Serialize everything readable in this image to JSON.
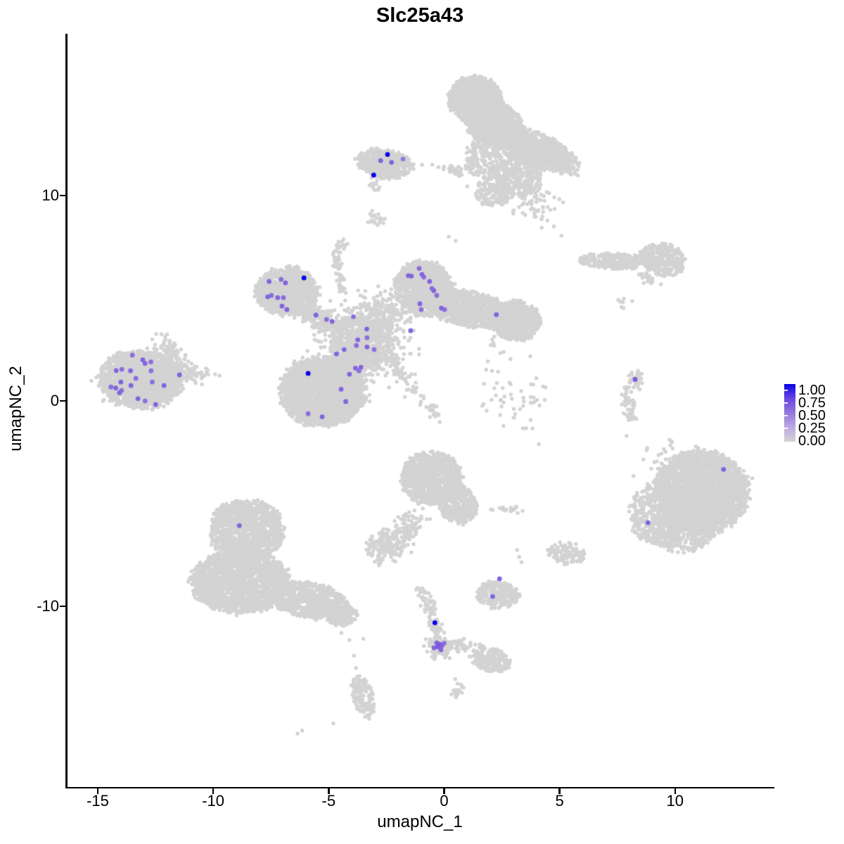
{
  "title": "Slc25a43",
  "axes": {
    "x": {
      "label": "umapNC_1",
      "ticks": [
        -15,
        -10,
        -5,
        0,
        5,
        10
      ]
    },
    "y": {
      "label": "umapNC_2",
      "ticks": [
        10,
        0,
        -10
      ]
    }
  },
  "legend": {
    "labels": [
      "1.00",
      "0.75",
      "0.50",
      "0.25",
      "0.00"
    ],
    "values": [
      1,
      0.75,
      0.5,
      0.25,
      0
    ]
  },
  "colors": {
    "background": "#FFFFFF",
    "axis": "#000000",
    "point_base": "#D3D3D3",
    "gradient": [
      [
        0,
        "#D3D3D3"
      ],
      [
        0.25,
        "#BCAAE3"
      ],
      [
        0.5,
        "#9478DC"
      ],
      [
        0.75,
        "#6A45DF"
      ],
      [
        1,
        "#0902E8"
      ]
    ]
  },
  "chart_data": {
    "type": "scatter",
    "title": "Slc25a43",
    "xlabel": "umapNC_1",
    "ylabel": "umapNC_2",
    "xlim": [
      -16.37,
      14.27
    ],
    "ylim": [
      -18.8,
      17.88
    ],
    "point_radius_px": {
      "base": 2.75,
      "expressed": 3.4
    },
    "clusters": [
      {
        "name": "top-main-upper",
        "t": "u",
        "x": 1.35,
        "y": 14.7,
        "sx": 1.15,
        "sy": 1.1,
        "rot": -10,
        "n": 900
      },
      {
        "name": "top-main-lower",
        "t": "u",
        "x": 2.15,
        "y": 13.5,
        "sx": 1.2,
        "sy": 1.05,
        "rot": -20,
        "n": 900
      },
      {
        "name": "top-arm",
        "t": "u",
        "x": 4.0,
        "y": 12.25,
        "sx": 1.75,
        "sy": 0.8,
        "rot": -27,
        "n": 850
      },
      {
        "name": "top-arm-tip",
        "t": "g",
        "x": 5.25,
        "y": 11.5,
        "sx": 0.3,
        "sy": 0.28,
        "rot": 0,
        "n": 70
      },
      {
        "name": "top-loose",
        "t": "u",
        "x": 2.1,
        "y": 11.8,
        "sx": 1.2,
        "sy": 1.05,
        "rot": 0,
        "n": 330
      },
      {
        "name": "top-loose2",
        "t": "u",
        "x": 3.2,
        "y": 10.9,
        "sx": 1.05,
        "sy": 0.95,
        "rot": 0,
        "n": 260
      },
      {
        "name": "top-loose3",
        "t": "u",
        "x": 2.2,
        "y": 10.2,
        "sx": 0.85,
        "sy": 0.75,
        "rot": 0,
        "n": 160
      },
      {
        "name": "top-loose-lower",
        "t": "g",
        "x": 3.9,
        "y": 9.65,
        "sx": 0.55,
        "sy": 0.5,
        "rot": 0,
        "n": 60
      },
      {
        "name": "top-strand",
        "t": "g",
        "x": 0.25,
        "y": 11.25,
        "sx": 0.55,
        "sy": 0.1,
        "rot": -12,
        "n": 38
      },
      {
        "name": "topleft-cluster",
        "t": "u",
        "x": -2.55,
        "y": 11.55,
        "sx": 1.2,
        "sy": 0.7,
        "rot": -10,
        "n": 430
      },
      {
        "name": "topleft-tail",
        "t": "g",
        "x": -3.0,
        "y": 10.7,
        "sx": 0.12,
        "sy": 0.3,
        "rot": 0,
        "n": 22
      },
      {
        "name": "tiny-blob",
        "t": "g",
        "x": -2.95,
        "y": 8.85,
        "sx": 0.2,
        "sy": 0.22,
        "rot": 0,
        "n": 20
      },
      {
        "name": "centerleft-blob",
        "t": "u",
        "x": -6.8,
        "y": 5.3,
        "sx": 1.35,
        "sy": 1.15,
        "rot": 0,
        "n": 900
      },
      {
        "name": "centerleft-core",
        "t": "g",
        "x": -6.8,
        "y": 5.4,
        "sx": 0.55,
        "sy": 0.45,
        "rot": 0,
        "n": 180
      },
      {
        "name": "centerleft-arm",
        "t": "g",
        "x": -5.35,
        "y": 4.0,
        "sx": 0.8,
        "sy": 0.3,
        "rot": -28,
        "n": 220
      },
      {
        "name": "centerleft-strand",
        "t": "g",
        "x": -4.55,
        "y": 6.4,
        "sx": 0.1,
        "sy": 0.75,
        "rot": 8,
        "n": 50
      },
      {
        "name": "centerleft-strand-top",
        "t": "g",
        "x": -4.4,
        "y": 7.55,
        "sx": 0.17,
        "sy": 0.17,
        "rot": 0,
        "n": 14
      },
      {
        "name": "center-mess",
        "t": "u",
        "x": -3.55,
        "y": 2.9,
        "sx": 1.35,
        "sy": 1.3,
        "rot": 0,
        "n": 450
      },
      {
        "name": "center-mess-g",
        "t": "g",
        "x": -3.5,
        "y": 2.9,
        "sx": 0.95,
        "sy": 0.95,
        "rot": 0,
        "n": 550
      },
      {
        "name": "center-mess-upper",
        "t": "g",
        "x": -2.6,
        "y": 4.3,
        "sx": 0.55,
        "sy": 0.5,
        "rot": 0,
        "n": 170
      },
      {
        "name": "center-bridge",
        "t": "g",
        "x": -4.35,
        "y": 1.9,
        "sx": 0.45,
        "sy": 0.5,
        "rot": 0,
        "n": 130
      },
      {
        "name": "centerright-lobe",
        "t": "u",
        "x": -0.9,
        "y": 5.5,
        "sx": 1.25,
        "sy": 1.35,
        "rot": 15,
        "n": 950
      },
      {
        "name": "centerright-arm",
        "t": "u",
        "x": 1.0,
        "y": 4.5,
        "sx": 1.9,
        "sy": 0.85,
        "rot": -13,
        "n": 1000
      },
      {
        "name": "centerright-blob",
        "t": "u",
        "x": 3.1,
        "y": 3.9,
        "sx": 1.05,
        "sy": 0.95,
        "rot": -10,
        "n": 640
      },
      {
        "name": "big-center-blob",
        "t": "u",
        "x": -5.25,
        "y": 0.45,
        "sx": 1.8,
        "sy": 1.65,
        "rot": 0,
        "n": 2300
      },
      {
        "name": "big-center-core",
        "t": "g",
        "x": -5.3,
        "y": 0.5,
        "sx": 0.8,
        "sy": 0.7,
        "rot": 0,
        "n": 250
      },
      {
        "name": "center-diag-strand",
        "t": "g",
        "x": -1.75,
        "y": 1.2,
        "sx": 0.18,
        "sy": 0.75,
        "rot": 28,
        "n": 55
      },
      {
        "name": "center-diag-strand2",
        "t": "g",
        "x": -0.6,
        "y": -0.3,
        "sx": 0.15,
        "sy": 0.5,
        "rot": 30,
        "n": 22
      },
      {
        "name": "left-cluster",
        "t": "u",
        "x": -13.15,
        "y": 1.05,
        "sx": 1.75,
        "sy": 1.4,
        "rot": -8,
        "n": 1500
      },
      {
        "name": "left-cluster-core",
        "t": "g",
        "x": -13.2,
        "y": 1.0,
        "sx": 0.8,
        "sy": 0.6,
        "rot": 0,
        "n": 220
      },
      {
        "name": "left-arm-up",
        "t": "g",
        "x": -11.85,
        "y": 2.35,
        "sx": 0.5,
        "sy": 0.27,
        "rot": -42,
        "n": 90
      },
      {
        "name": "left-arm-right",
        "t": "g",
        "x": -11.3,
        "y": 1.35,
        "sx": 0.7,
        "sy": 0.22,
        "rot": -6,
        "n": 100
      },
      {
        "name": "righttop-strip",
        "t": "u",
        "x": 7.4,
        "y": 6.8,
        "sx": 1.5,
        "sy": 0.38,
        "rot": -3,
        "n": 270
      },
      {
        "name": "righttop-blob",
        "t": "u",
        "x": 9.45,
        "y": 6.9,
        "sx": 1.0,
        "sy": 0.75,
        "rot": -20,
        "n": 330
      },
      {
        "name": "righttop-dash",
        "t": "g",
        "x": 8.75,
        "y": 6.0,
        "sx": 0.3,
        "sy": 0.11,
        "rot": -38,
        "n": 22
      },
      {
        "name": "righttop-dots",
        "t": "g",
        "x": 7.8,
        "y": 4.75,
        "sx": 0.25,
        "sy": 0.22,
        "rot": 0,
        "n": 7
      },
      {
        "name": "right-string-1",
        "t": "g",
        "x": 8.3,
        "y": 1.05,
        "sx": 0.15,
        "sy": 0.3,
        "rot": -10,
        "n": 38
      },
      {
        "name": "right-string-2",
        "t": "g",
        "x": 7.95,
        "y": 0.15,
        "sx": 0.13,
        "sy": 0.42,
        "rot": 12,
        "n": 38
      },
      {
        "name": "right-string-3",
        "t": "g",
        "x": 8.05,
        "y": -0.75,
        "sx": 0.12,
        "sy": 0.18,
        "rot": 0,
        "n": 12
      },
      {
        "name": "right-big",
        "t": "u",
        "x": 11.1,
        "y": -4.45,
        "sx": 2.05,
        "sy": 2.0,
        "rot": 0,
        "n": 2700
      },
      {
        "name": "right-big-left",
        "t": "u",
        "x": 9.35,
        "y": -5.5,
        "sx": 1.3,
        "sy": 1.5,
        "rot": 0,
        "n": 420
      },
      {
        "name": "right-big-bottom",
        "t": "u",
        "x": 10.4,
        "y": -6.3,
        "sx": 1.3,
        "sy": 1.05,
        "rot": 0,
        "n": 350
      },
      {
        "name": "right-big-top-sparse",
        "t": "g",
        "x": 9.8,
        "y": -2.5,
        "sx": 0.45,
        "sy": 0.35,
        "rot": 0,
        "n": 16
      },
      {
        "name": "mid-kidney",
        "t": "u",
        "x": -0.55,
        "y": -3.75,
        "sx": 1.3,
        "sy": 1.25,
        "rot": 0,
        "n": 950
      },
      {
        "name": "mid-kidney-tail",
        "t": "u",
        "x": 0.55,
        "y": -5.0,
        "sx": 0.8,
        "sy": 1.0,
        "rot": 25,
        "n": 340
      },
      {
        "name": "mid-kidney-strand",
        "t": "g",
        "x": -1.6,
        "y": -6.3,
        "sx": 0.28,
        "sy": 0.5,
        "rot": -38,
        "n": 90
      },
      {
        "name": "mid-small-blob",
        "t": "g",
        "x": -2.5,
        "y": -7.0,
        "sx": 0.45,
        "sy": 0.34,
        "rot": 0,
        "n": 150
      },
      {
        "name": "mid-small-blob2",
        "t": "g",
        "x": -2.75,
        "y": -7.75,
        "sx": 0.14,
        "sy": 0.14,
        "rot": 0,
        "n": 10
      },
      {
        "name": "mid-dash",
        "t": "g",
        "x": 2.7,
        "y": -5.25,
        "sx": 0.36,
        "sy": 0.12,
        "rot": 5,
        "n": 20
      },
      {
        "name": "small-right-cluster",
        "t": "u",
        "x": 2.35,
        "y": -9.45,
        "sx": 0.95,
        "sy": 0.65,
        "rot": -10,
        "n": 240
      },
      {
        "name": "small-right-cluster2",
        "t": "u",
        "x": 5.3,
        "y": -7.4,
        "sx": 0.85,
        "sy": 0.55,
        "rot": -15,
        "n": 110
      },
      {
        "name": "bottom-y-strand",
        "t": "g",
        "x": -0.7,
        "y": -10.0,
        "sx": 0.14,
        "sy": 0.55,
        "rot": 22,
        "n": 55
      },
      {
        "name": "bottom-y-neck",
        "t": "g",
        "x": -0.33,
        "y": -11.15,
        "sx": 0.13,
        "sy": 0.3,
        "rot": 5,
        "n": 35
      },
      {
        "name": "bottom-y-junction",
        "t": "g",
        "x": -0.1,
        "y": -11.95,
        "sx": 0.3,
        "sy": 0.26,
        "rot": 0,
        "n": 80
      },
      {
        "name": "bottom-y-arm",
        "t": "g",
        "x": 0.7,
        "y": -11.9,
        "sx": 0.5,
        "sy": 0.13,
        "rot": -10,
        "n": 45
      },
      {
        "name": "bottom-y-armblob",
        "t": "u",
        "x": 2.0,
        "y": -12.6,
        "sx": 0.9,
        "sy": 0.55,
        "rot": -18,
        "n": 200
      },
      {
        "name": "bottom-y-below",
        "t": "g",
        "x": 0.55,
        "y": -14.05,
        "sx": 0.15,
        "sy": 0.2,
        "rot": 0,
        "n": 16
      },
      {
        "name": "bottomleft-top",
        "t": "u",
        "x": -8.55,
        "y": -6.35,
        "sx": 1.6,
        "sy": 1.5,
        "rot": 0,
        "n": 1000
      },
      {
        "name": "bottomleft-top-bump",
        "t": "u",
        "x": -9.0,
        "y": -5.5,
        "sx": 0.9,
        "sy": 0.6,
        "rot": 0,
        "n": 150
      },
      {
        "name": "bottomleft-main",
        "t": "u",
        "x": -8.85,
        "y": -8.8,
        "sx": 2.1,
        "sy": 1.5,
        "rot": 0,
        "n": 1800
      },
      {
        "name": "bottomleft-arm",
        "t": "u",
        "x": -5.9,
        "y": -9.7,
        "sx": 1.8,
        "sy": 0.85,
        "rot": -12,
        "n": 700
      },
      {
        "name": "bottomleft-armblob",
        "t": "u",
        "x": -4.4,
        "y": -10.45,
        "sx": 0.65,
        "sy": 0.5,
        "rot": 0,
        "n": 150
      },
      {
        "name": "bottom-tail-blob",
        "t": "u",
        "x": -3.5,
        "y": -14.4,
        "sx": 0.45,
        "sy": 1.1,
        "rot": 12,
        "n": 140
      },
      {
        "name": "sparse-center-right",
        "t": "g",
        "x": 3.3,
        "y": 0.2,
        "sx": 0.75,
        "sy": 0.95,
        "rot": 0,
        "n": 50
      },
      {
        "name": "sparse-center-right2",
        "t": "g",
        "x": 2.35,
        "y": 2.2,
        "sx": 0.3,
        "sy": 0.45,
        "rot": 0,
        "n": 10
      }
    ],
    "background_singles": [
      [
        5.08,
        8.05
      ],
      [
        4.75,
        8.5
      ],
      [
        0.2,
        8.0
      ],
      [
        0.5,
        7.8
      ],
      [
        1.0,
        10.45
      ],
      [
        1.37,
        10.1
      ],
      [
        2.0,
        9.6
      ],
      [
        4.1,
        -2.1
      ],
      [
        -4.8,
        -15.7
      ],
      [
        -6.15,
        -16.05
      ],
      [
        -6.35,
        -16.2
      ],
      [
        -3.9,
        -12.4
      ],
      [
        -3.82,
        -13.0
      ],
      [
        -4.45,
        -11.3
      ],
      [
        -4.1,
        -11.64
      ],
      [
        -3.5,
        -11.58
      ],
      [
        -0.8,
        -11.6
      ],
      [
        7.9,
        -1.7
      ],
      [
        8.77,
        -2.4
      ],
      [
        8.63,
        -2.85
      ],
      [
        8.97,
        -3.3
      ],
      [
        8.2,
        -3.65
      ],
      [
        3.16,
        -7.26
      ],
      [
        3.25,
        -7.6
      ],
      [
        3.35,
        -7.85
      ]
    ],
    "expressed_points": [
      [
        -13.5,
        2.23,
        0.55
      ],
      [
        -13.05,
        2.0,
        0.6
      ],
      [
        -12.7,
        1.9,
        0.55
      ],
      [
        -12.95,
        1.83,
        0.6
      ],
      [
        -14.2,
        1.48,
        0.6
      ],
      [
        -13.96,
        1.54,
        0.55
      ],
      [
        -13.58,
        1.47,
        0.6
      ],
      [
        -12.69,
        1.47,
        0.55
      ],
      [
        -11.46,
        1.27,
        0.6
      ],
      [
        -13.35,
        1.1,
        0.55
      ],
      [
        -14.0,
        0.92,
        0.6
      ],
      [
        -12.64,
        0.92,
        0.55
      ],
      [
        -12.13,
        0.75,
        0.6
      ],
      [
        -14.43,
        0.68,
        0.55
      ],
      [
        -13.56,
        0.75,
        0.6
      ],
      [
        -14.22,
        0.63,
        0.6
      ],
      [
        -13.97,
        0.51,
        0.55
      ],
      [
        -14.06,
        0.4,
        0.6
      ],
      [
        -13.26,
        0.11,
        0.6
      ],
      [
        -12.95,
        0.0,
        0.55
      ],
      [
        -12.49,
        -0.17,
        0.6
      ],
      [
        -7.58,
        5.82,
        0.6
      ],
      [
        -7.06,
        5.92,
        0.55
      ],
      [
        -6.87,
        5.75,
        0.6
      ],
      [
        -7.64,
        5.07,
        0.6
      ],
      [
        -7.48,
        5.14,
        0.55
      ],
      [
        -7.21,
        5.03,
        0.6
      ],
      [
        -6.96,
        5.03,
        0.55
      ],
      [
        -7.02,
        4.62,
        0.6
      ],
      [
        -6.81,
        4.45,
        0.6
      ],
      [
        -6.07,
        5.99,
        1.0
      ],
      [
        -5.55,
        4.18,
        0.6
      ],
      [
        -5.09,
        3.97,
        0.55
      ],
      [
        -4.85,
        3.87,
        0.6
      ],
      [
        -2.45,
        12.0,
        1.0
      ],
      [
        -2.75,
        11.7,
        0.6
      ],
      [
        -2.28,
        11.62,
        0.6
      ],
      [
        -1.78,
        11.78,
        0.5
      ],
      [
        -3.05,
        11.0,
        1.0
      ],
      [
        -1.55,
        6.1,
        0.6
      ],
      [
        -1.42,
        6.08,
        0.6
      ],
      [
        -1.08,
        6.45,
        0.55
      ],
      [
        -0.96,
        6.16,
        0.6
      ],
      [
        -0.88,
        6.03,
        0.55
      ],
      [
        -0.63,
        5.82,
        0.6
      ],
      [
        -0.53,
        5.48,
        0.55
      ],
      [
        -0.45,
        5.37,
        0.6
      ],
      [
        -0.32,
        5.14,
        0.55
      ],
      [
        -1.05,
        4.73,
        0.6
      ],
      [
        -0.99,
        4.45,
        0.55
      ],
      [
        -0.12,
        4.52,
        0.6
      ],
      [
        0.02,
        4.45,
        0.55
      ],
      [
        2.26,
        4.2,
        0.6
      ],
      [
        -1.45,
        3.42,
        0.6
      ],
      [
        -3.93,
        4.1,
        0.55
      ],
      [
        -3.35,
        3.5,
        0.6
      ],
      [
        -3.34,
        3.08,
        0.55
      ],
      [
        -3.74,
        2.98,
        0.6
      ],
      [
        -3.8,
        2.7,
        0.55
      ],
      [
        -3.34,
        2.63,
        0.6
      ],
      [
        -3.03,
        2.5,
        0.55
      ],
      [
        -4.33,
        2.5,
        0.6
      ],
      [
        -4.66,
        2.29,
        0.6
      ],
      [
        -3.84,
        1.6,
        0.6
      ],
      [
        -3.69,
        1.47,
        0.55
      ],
      [
        -3.6,
        1.64,
        0.6
      ],
      [
        -4.1,
        1.3,
        0.6
      ],
      [
        -4.46,
        0.57,
        0.6
      ],
      [
        -5.89,
        1.34,
        1.0
      ],
      [
        -4.26,
        -0.03,
        0.6
      ],
      [
        -5.89,
        -0.62,
        0.55
      ],
      [
        -5.28,
        -0.77,
        0.6
      ],
      [
        8.27,
        1.05,
        0.65
      ],
      [
        12.1,
        -3.33,
        0.6
      ],
      [
        8.83,
        -5.93,
        0.6
      ],
      [
        -8.87,
        -6.07,
        0.6
      ],
      [
        -0.4,
        -10.8,
        1.0
      ],
      [
        -0.32,
        -11.78,
        0.6
      ],
      [
        -0.2,
        -11.85,
        0.65
      ],
      [
        -0.1,
        -11.92,
        0.6
      ],
      [
        -0.28,
        -11.97,
        0.65
      ],
      [
        -0.44,
        -12.02,
        0.6
      ],
      [
        -0.14,
        -12.12,
        0.6
      ],
      [
        0.0,
        -11.8,
        0.55
      ],
      [
        2.4,
        -8.66,
        0.6
      ],
      [
        2.1,
        -9.52,
        0.6
      ]
    ]
  }
}
